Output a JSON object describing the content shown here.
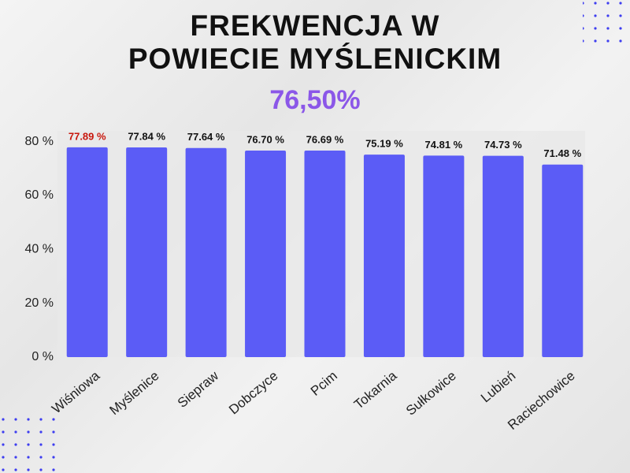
{
  "chart_data": {
    "type": "bar",
    "title": "FREKWENCJA W POWIECIE MYŚLENICKIM",
    "subtitle": "76,50%",
    "categories": [
      "Wiśniowa",
      "Myślenice",
      "Siepraw",
      "Dobczyce",
      "Pcim",
      "Tokarnia",
      "Sułkowice",
      "Lubień",
      "Raciechowice"
    ],
    "values": [
      77.89,
      77.84,
      77.64,
      76.7,
      76.69,
      75.19,
      74.81,
      74.73,
      71.48
    ],
    "value_labels": [
      "77.89 %",
      "77.84 %",
      "77.64 %",
      "76.70 %",
      "76.69 %",
      "75.19 %",
      "74.81 %",
      "74.73 %",
      "71.48 %"
    ],
    "value_label_colors": [
      "#c8160c",
      "#111111",
      "#111111",
      "#111111",
      "#111111",
      "#111111",
      "#111111",
      "#111111",
      "#111111"
    ],
    "color": "#5b5cf6",
    "ylim": [
      0,
      84
    ],
    "yticks": [
      {
        "value": 0,
        "label": "0 %"
      },
      {
        "value": 20,
        "label": "20 %"
      },
      {
        "value": 40,
        "label": "40 %"
      },
      {
        "value": 60,
        "label": "60 %"
      },
      {
        "value": 80,
        "label": "80 %"
      }
    ],
    "grid": false
  }
}
